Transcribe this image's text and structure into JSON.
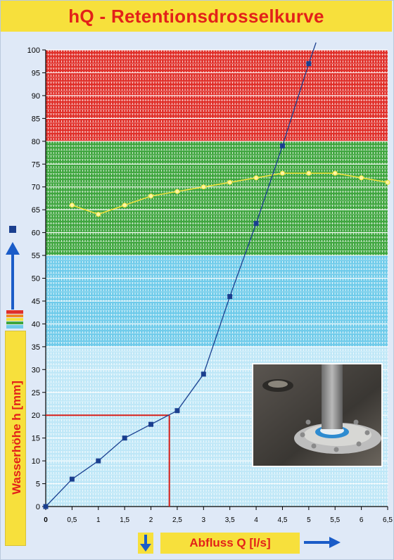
{
  "title": "hQ - Retentionsdrosselkurve",
  "colors": {
    "title_bg": "#f7e03c",
    "title_text": "#e32119",
    "zone_red": "#e0302a",
    "zone_green": "#3fa63f",
    "zone_blue": "#6fcbea",
    "zone_lightblue": "#bfe7f7",
    "series_curve": "#1a3f8f",
    "series_secondary": "#f3e23a",
    "marker_line": "#d8201a"
  },
  "icons": [
    "blue-square-icon",
    "up-arrow-icon",
    "down-arrow-icon",
    "right-arrow-icon",
    "color-stripes-icon"
  ],
  "chart_data": {
    "type": "line",
    "title": "hQ - Retentionsdrosselkurve",
    "xlabel": "Abfluss Q [l/s]",
    "ylabel": "Wasserhöhe h [mm]",
    "xlim": [
      0,
      6.5
    ],
    "ylim": [
      0,
      100
    ],
    "x_ticks": [
      "0",
      "0,5",
      "1",
      "1,5",
      "2",
      "2,5",
      "3",
      "3,5",
      "4",
      "4,5",
      "5",
      "5,5",
      "6",
      "6,5"
    ],
    "y_ticks": [
      "0",
      "5",
      "10",
      "15",
      "20",
      "25",
      "30",
      "35",
      "40",
      "45",
      "50",
      "55",
      "60",
      "65",
      "70",
      "75",
      "80",
      "85",
      "90",
      "95",
      "100"
    ],
    "grid": true,
    "zones": [
      {
        "from": 80,
        "to": 100,
        "color": "red"
      },
      {
        "from": 55,
        "to": 80,
        "color": "green"
      },
      {
        "from": 35,
        "to": 55,
        "color": "blue"
      },
      {
        "from": 0,
        "to": 35,
        "color": "lightblue"
      }
    ],
    "series": [
      {
        "marker": "square",
        "x": [
          0,
          0.5,
          1,
          1.5,
          2,
          2.5,
          3,
          3.5,
          4,
          4.5,
          5
        ],
        "y": [
          0,
          6,
          10,
          15,
          18,
          21,
          29,
          46,
          62,
          79,
          97
        ]
      },
      {
        "marker": "circle",
        "x": [
          0.5,
          1,
          1.5,
          2,
          2.5,
          3,
          3.5,
          4,
          4.5,
          5,
          5.5,
          6,
          6.5
        ],
        "y": [
          66,
          64,
          66,
          68,
          69,
          70,
          71,
          72,
          73,
          73,
          73,
          72,
          71
        ]
      }
    ],
    "reference": {
      "x": 2.35,
      "y": 20
    }
  }
}
